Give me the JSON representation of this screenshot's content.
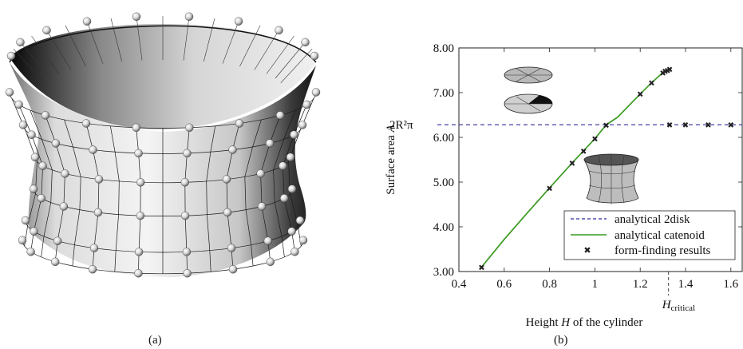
{
  "panel_a": {
    "caption": "(a)"
  },
  "panel_b": {
    "caption": "(b)"
  },
  "chart_data": {
    "type": "line",
    "xlabel_pre": "Height ",
    "xlabel_var": "H",
    "xlabel_post": " of the cylinder",
    "ylabel_pre": "Surface area ",
    "ylabel_var": "A",
    "xlim": [
      0.4,
      1.65
    ],
    "ylim": [
      3.0,
      8.0
    ],
    "xticks": [
      "0.4",
      "0.6",
      "0.8",
      "1",
      "1.2",
      "1.4",
      "1.6"
    ],
    "xtick_values": [
      0.4,
      0.6,
      0.8,
      1.0,
      1.2,
      1.4,
      1.6
    ],
    "yticks": [
      "3.00",
      "4.00",
      "5.00",
      "6.00",
      "7.00",
      "8.00"
    ],
    "ytick_values": [
      3.0,
      4.0,
      5.0,
      6.0,
      7.0,
      8.0
    ],
    "annotations": {
      "y_ref_text": "2R²π",
      "y_ref_value": 6.283,
      "x_ref_main": "H",
      "x_ref_sub": "critical",
      "x_ref_value": 1.325
    },
    "series": [
      {
        "name": "analytical 2disk",
        "style": "dashed",
        "color": "#2a2a9c",
        "x": [
          0.4,
          1.65
        ],
        "y": [
          6.283,
          6.283
        ]
      },
      {
        "name": "analytical catenoid",
        "style": "solid",
        "color": "#3a9a20",
        "x": [
          0.5,
          0.6,
          0.7,
          0.8,
          0.9,
          1.0,
          1.05,
          1.1,
          1.2,
          1.25,
          1.3,
          1.325
        ],
        "y": [
          3.1,
          3.72,
          4.3,
          4.87,
          5.43,
          5.97,
          6.28,
          6.45,
          6.97,
          7.22,
          7.45,
          7.52
        ]
      },
      {
        "name": "form-finding results",
        "style": "markers",
        "color": "#222222",
        "x": [
          0.5,
          0.8,
          0.9,
          0.95,
          1.0,
          1.05,
          1.2,
          1.25,
          1.3,
          1.31,
          1.32,
          1.33,
          1.33,
          1.4,
          1.5,
          1.6
        ],
        "y": [
          3.1,
          4.87,
          5.43,
          5.7,
          5.97,
          6.28,
          6.97,
          7.22,
          7.45,
          7.48,
          7.5,
          7.53,
          6.283,
          6.283,
          6.283,
          6.283
        ]
      }
    ],
    "legend_position": "bottom-right"
  },
  "colors": {
    "dashed": "#2a2a9c",
    "catenoid": "#3a9a20",
    "markers": "#222222"
  }
}
